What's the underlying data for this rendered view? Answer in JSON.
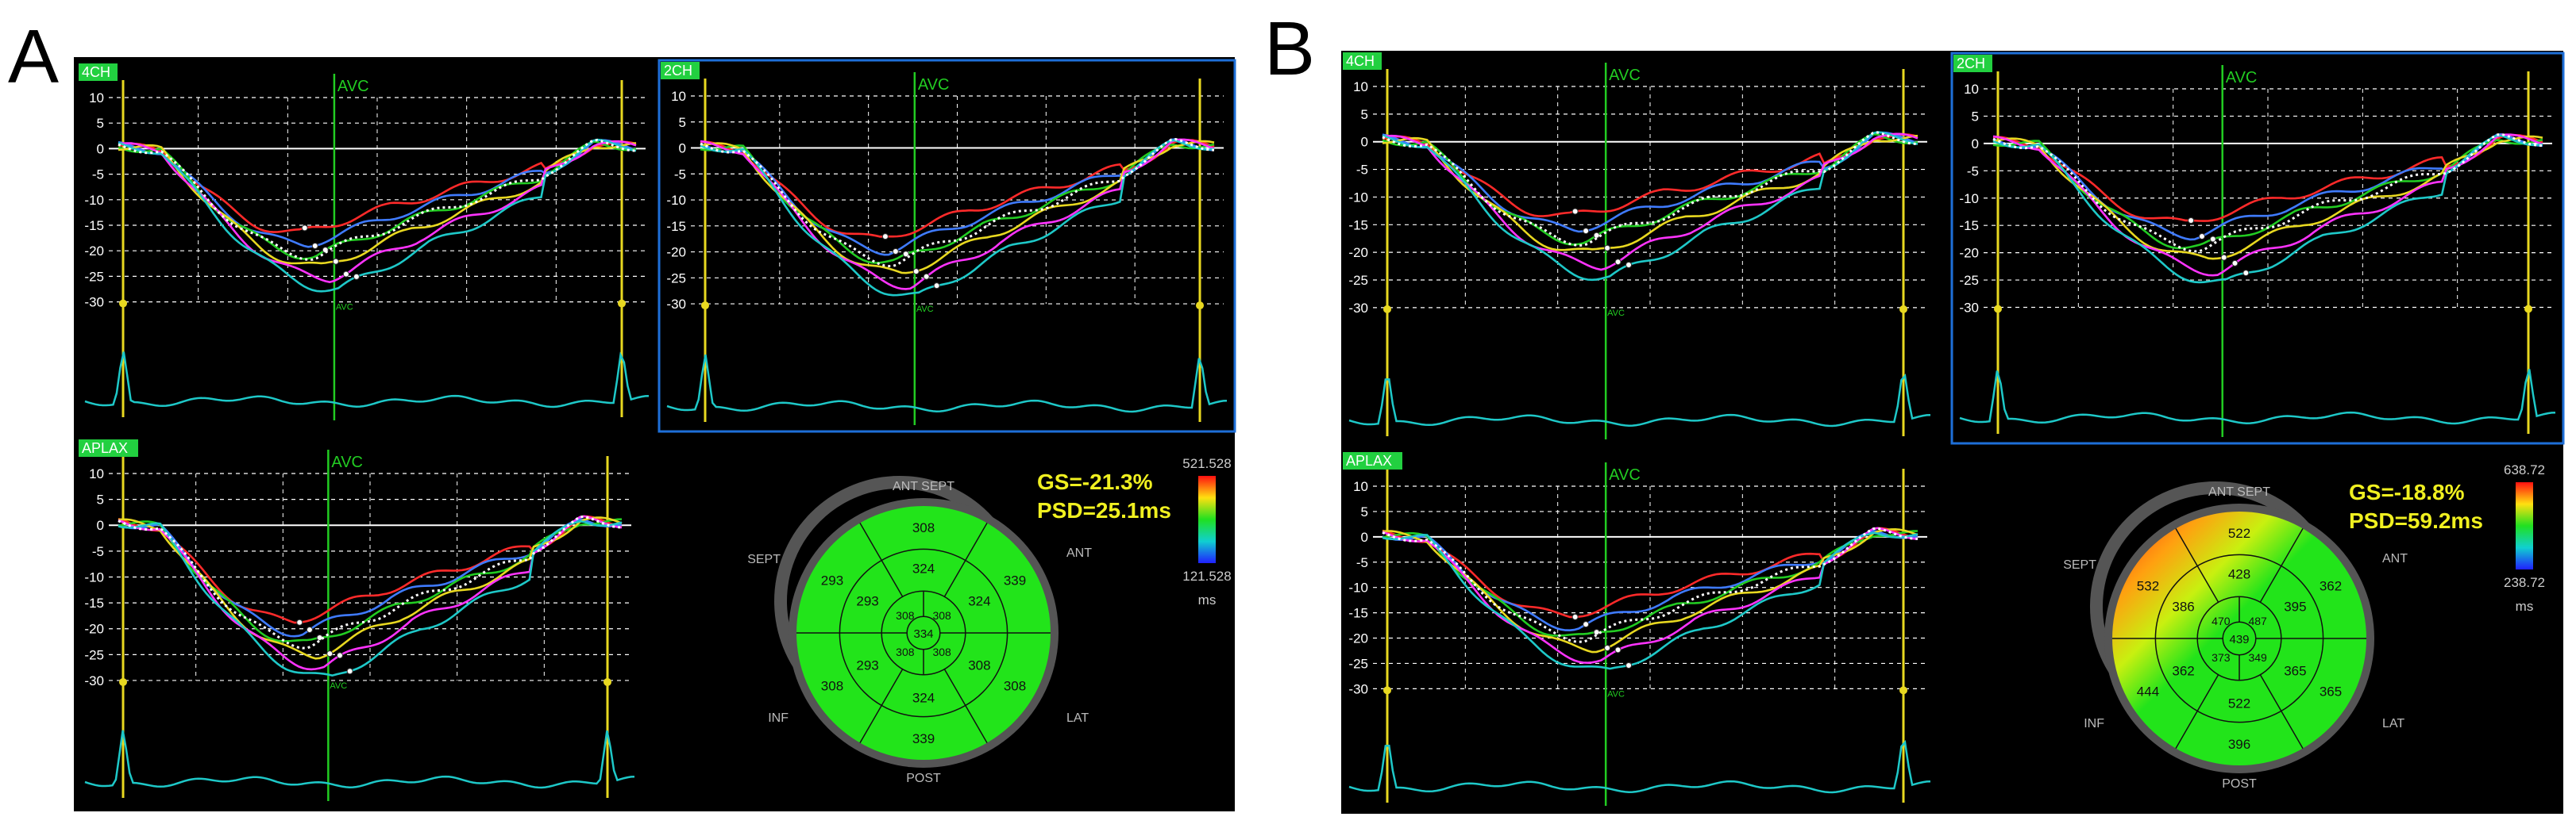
{
  "figure_labels": {
    "a": "A",
    "b": "B"
  },
  "panels": [
    {
      "id": "A",
      "views": [
        {
          "key": "4ch",
          "tag": "4CH",
          "avc": "AVC",
          "avc_small": "AVC",
          "y_ticks": [
            "10",
            "5",
            "0",
            "-5",
            "-10",
            "-15",
            "-20",
            "-25",
            "-30"
          ]
        },
        {
          "key": "2ch",
          "tag": "2CH",
          "avc": "AVC",
          "avc_small": "AVC",
          "y_ticks": [
            "10",
            "5",
            "0",
            "-5",
            "-10",
            "-15",
            "-20",
            "-25",
            "-30"
          ]
        },
        {
          "key": "aplax",
          "tag": "APLAX",
          "avc": "AVC",
          "avc_small": "AVC",
          "y_ticks": [
            "10",
            "5",
            "0",
            "-5",
            "-10",
            "-15",
            "-20",
            "-25",
            "-30"
          ]
        }
      ],
      "bullseye": {
        "gs": "GS=-21.3%",
        "psd": "PSD=25.1ms",
        "scale_max": "521.528",
        "scale_min": "121.528",
        "scale_unit": "ms",
        "labels": {
          "ant_sept": "ANT SEPT",
          "ant": "ANT",
          "sept": "SEPT",
          "inf": "INF",
          "lat": "LAT",
          "post": "POST"
        },
        "ring_outer": [
          "308",
          "339",
          "308",
          "339",
          "308",
          "293"
        ],
        "ring_mid": [
          "324",
          "324",
          "308",
          "324",
          "293",
          "293"
        ],
        "ring_inner": [
          "308",
          "308",
          "308",
          "308"
        ],
        "apex": "334"
      }
    },
    {
      "id": "B",
      "views": [
        {
          "key": "4ch",
          "tag": "4CH",
          "avc": "AVC",
          "avc_small": "AVC",
          "y_ticks": [
            "10",
            "5",
            "0",
            "-5",
            "-10",
            "-15",
            "-20",
            "-25",
            "-30"
          ]
        },
        {
          "key": "2ch",
          "tag": "2CH",
          "avc": "AVC",
          "y_ticks": [
            "10",
            "5",
            "0",
            "-5",
            "-10",
            "-15",
            "-20",
            "-25",
            "-30"
          ]
        },
        {
          "key": "aplax",
          "tag": "APLAX",
          "avc": "AVC",
          "avc_small": "AVC",
          "y_ticks": [
            "10",
            "5",
            "0",
            "-5",
            "-10",
            "-15",
            "-20",
            "-25",
            "-30"
          ]
        }
      ],
      "bullseye": {
        "gs": "GS=-18.8%",
        "psd": "PSD=59.2ms",
        "scale_max": "638.72",
        "scale_min": "238.72",
        "scale_unit": "ms",
        "labels": {
          "ant_sept": "ANT SEPT",
          "ant": "ANT",
          "sept": "SEPT",
          "inf": "INF",
          "lat": "LAT",
          "post": "POST"
        },
        "ring_outer": [
          "522",
          "362",
          "365",
          "396",
          "444",
          "532"
        ],
        "ring_mid": [
          "428",
          "395",
          "365",
          "522",
          "362",
          "386"
        ],
        "ring_inner": [
          "487",
          "349",
          "373",
          "470"
        ],
        "apex": "439"
      }
    }
  ],
  "colors": {
    "bg": "#000000",
    "grid": "#ffffff",
    "yellow": "#e8d820",
    "green_line": "#22cc22",
    "cyan": "#1ec8c8",
    "blue_frame": "#1e6fd8",
    "tag_bg": "#22d040",
    "stats": "#f0f020",
    "segment_green": "#22e41a",
    "ring": "#555555"
  }
}
